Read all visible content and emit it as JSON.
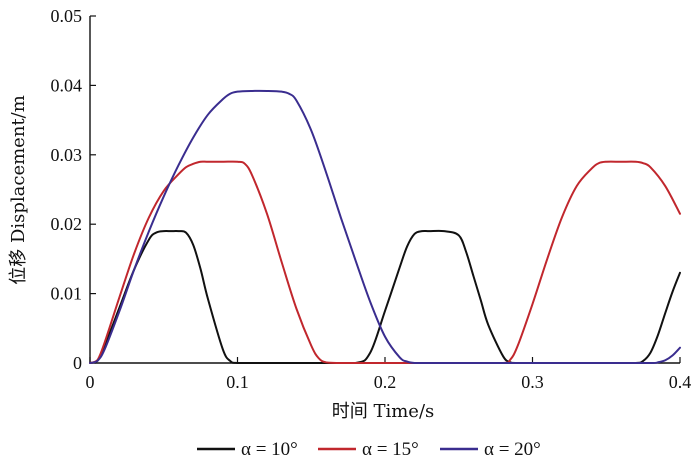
{
  "chart_data": {
    "type": "line",
    "xlabel": "时间 Time/s",
    "ylabel": "位移 Displacement/m",
    "xlim": [
      0,
      0.4
    ],
    "ylim": [
      0,
      0.05
    ],
    "xticks": [
      0,
      0.1,
      0.2,
      0.3,
      0.4
    ],
    "xtick_labels": [
      "0",
      "0.1",
      "0.2",
      "0.3",
      "0.4"
    ],
    "yticks": [
      0,
      0.01,
      0.02,
      0.03,
      0.04,
      0.05
    ],
    "ytick_labels": [
      "0",
      "0.01",
      "0.02",
      "0.03",
      "0.04",
      "0.05"
    ],
    "grid": false,
    "legend_position": "bottom",
    "series": [
      {
        "name": "α = 10°",
        "color": "#111111",
        "x": [
          0,
          0.005,
          0.01,
          0.02,
          0.03,
          0.04,
          0.045,
          0.05,
          0.055,
          0.06,
          0.065,
          0.07,
          0.075,
          0.08,
          0.09,
          0.095,
          0.1,
          0.12,
          0.15,
          0.18,
          0.19,
          0.2,
          0.21,
          0.215,
          0.22,
          0.225,
          0.23,
          0.24,
          0.25,
          0.255,
          0.26,
          0.265,
          0.27,
          0.28,
          0.285,
          0.29,
          0.32,
          0.35,
          0.37,
          0.375,
          0.38,
          0.385,
          0.39,
          0.395,
          0.4
        ],
        "y": [
          0,
          0.0003,
          0.0025,
          0.008,
          0.0135,
          0.0178,
          0.0188,
          0.019,
          0.019,
          0.019,
          0.0188,
          0.017,
          0.0135,
          0.0092,
          0.002,
          0.0003,
          0,
          0,
          0,
          0,
          0.0015,
          0.0075,
          0.0138,
          0.0168,
          0.0186,
          0.019,
          0.019,
          0.019,
          0.0184,
          0.016,
          0.0125,
          0.009,
          0.0055,
          0.001,
          0.0001,
          0,
          0,
          0,
          0,
          0.0003,
          0.0015,
          0.004,
          0.0072,
          0.0103,
          0.013
        ]
      },
      {
        "name": "α = 15°",
        "color": "#c1272d",
        "x": [
          0,
          0.005,
          0.01,
          0.02,
          0.03,
          0.04,
          0.05,
          0.06,
          0.065,
          0.07,
          0.075,
          0.08,
          0.09,
          0.1,
          0.105,
          0.11,
          0.12,
          0.13,
          0.14,
          0.15,
          0.155,
          0.16,
          0.17,
          0.2,
          0.25,
          0.28,
          0.285,
          0.29,
          0.3,
          0.31,
          0.32,
          0.33,
          0.34,
          0.345,
          0.35,
          0.36,
          0.37,
          0.375,
          0.38,
          0.39,
          0.4
        ],
        "y": [
          0,
          0.0004,
          0.003,
          0.0095,
          0.0158,
          0.021,
          0.0248,
          0.0272,
          0.0282,
          0.0287,
          0.029,
          0.029,
          0.029,
          0.029,
          0.0287,
          0.027,
          0.0215,
          0.0145,
          0.0078,
          0.0025,
          0.0007,
          0.0001,
          0,
          0,
          0,
          0,
          0.0005,
          0.0025,
          0.0085,
          0.015,
          0.021,
          0.0255,
          0.028,
          0.0288,
          0.029,
          0.029,
          0.029,
          0.0288,
          0.0282,
          0.0255,
          0.0215
        ]
      },
      {
        "name": "α = 20°",
        "color": "#3a2d8f",
        "x": [
          0,
          0.005,
          0.01,
          0.02,
          0.03,
          0.04,
          0.05,
          0.06,
          0.07,
          0.08,
          0.09,
          0.095,
          0.1,
          0.11,
          0.12,
          0.13,
          0.135,
          0.14,
          0.15,
          0.16,
          0.17,
          0.18,
          0.19,
          0.2,
          0.21,
          0.215,
          0.22,
          0.23,
          0.26,
          0.3,
          0.35,
          0.38,
          0.385,
          0.39,
          0.395,
          0.4
        ],
        "y": [
          0,
          0.0003,
          0.002,
          0.0075,
          0.0135,
          0.019,
          0.024,
          0.0285,
          0.0325,
          0.0358,
          0.038,
          0.0388,
          0.0391,
          0.0392,
          0.0392,
          0.0391,
          0.0388,
          0.0378,
          0.0335,
          0.0275,
          0.021,
          0.0148,
          0.0088,
          0.0038,
          0.0008,
          0.0002,
          0,
          0,
          0,
          0,
          0,
          0,
          0.0001,
          0.0004,
          0.0011,
          0.0022
        ]
      }
    ]
  }
}
